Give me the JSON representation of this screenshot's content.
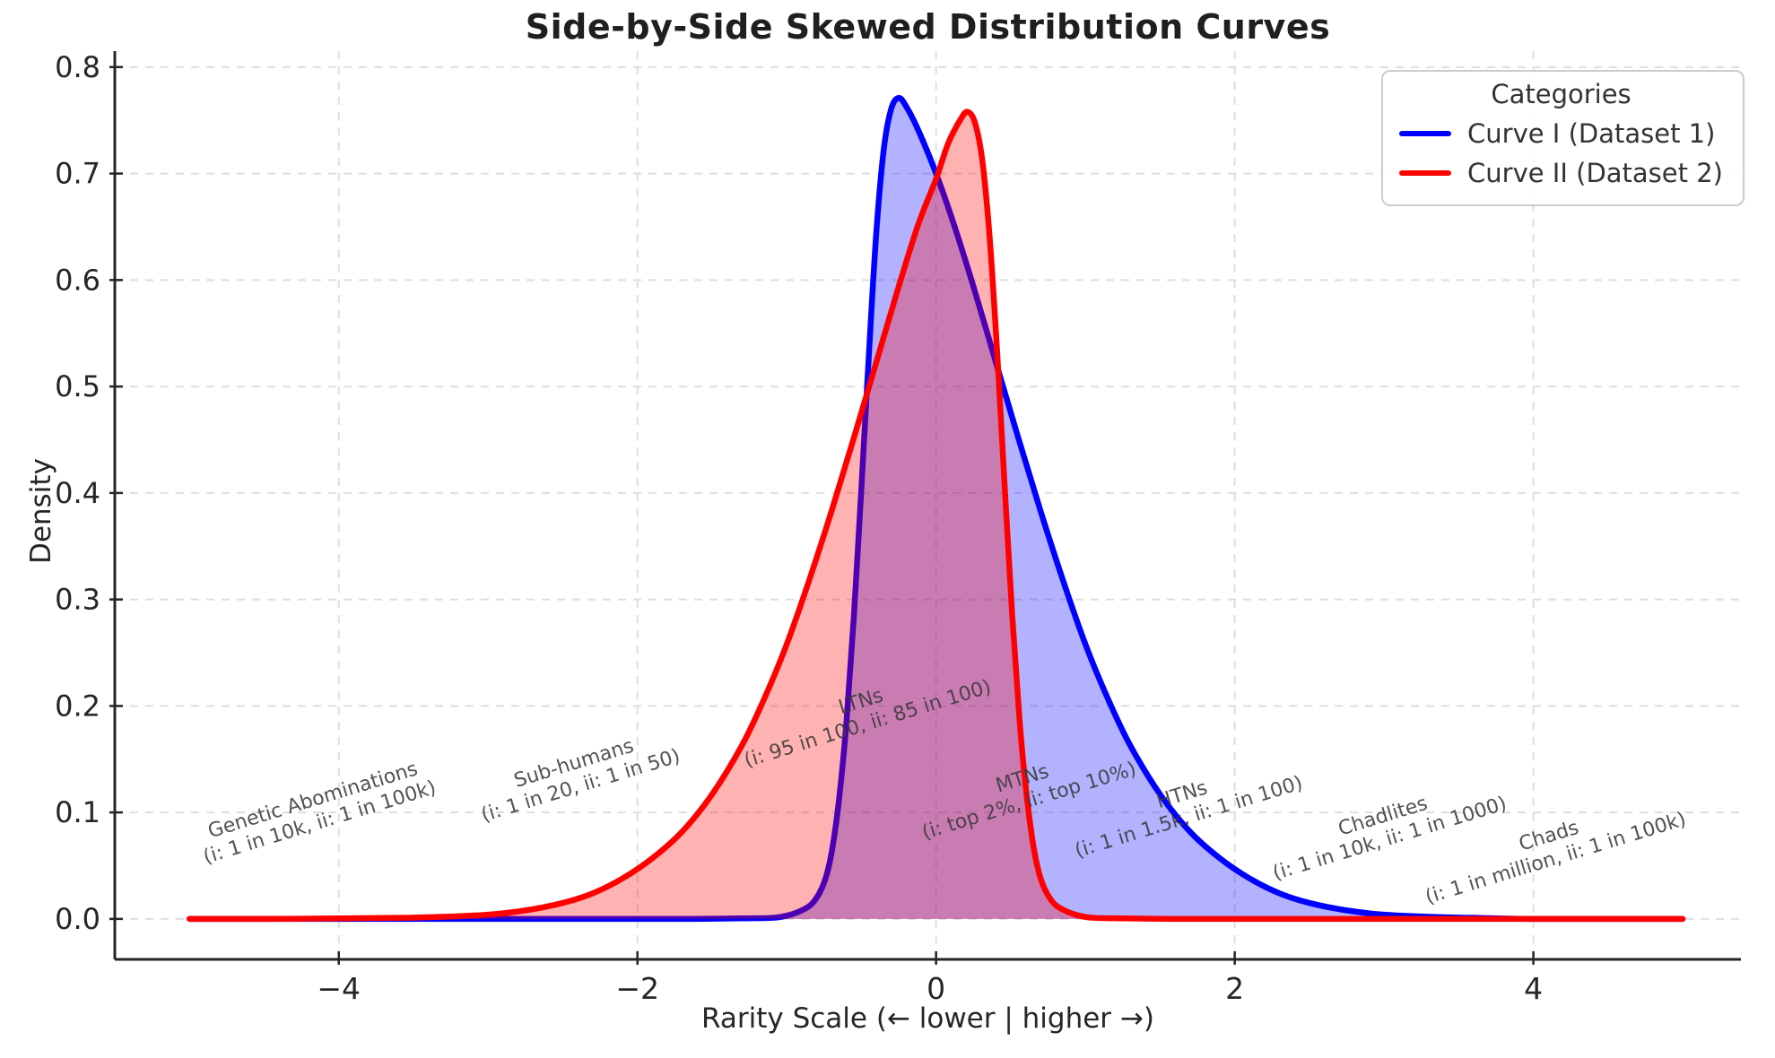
{
  "chart_data": {
    "type": "line",
    "title": "Side-by-Side Skewed Distribution Curves",
    "xlabel": "Rarity Scale (← lower | higher →)",
    "ylabel": "Density",
    "xlim": [
      -5.5,
      5.39
    ],
    "ylim": [
      -0.038,
      0.815
    ],
    "x_ticks": [
      -4,
      -2,
      0,
      2,
      4
    ],
    "y_ticks": [
      0.0,
      0.1,
      0.2,
      0.3,
      0.4,
      0.5,
      0.6,
      0.7,
      0.8
    ],
    "grid": true,
    "legend_position": "upper right",
    "legend": {
      "title": "Categories",
      "entries": [
        {
          "label": "Curve I (Dataset 1)",
          "color": "#0000ff"
        },
        {
          "label": "Curve II (Dataset 2)",
          "color": "#ff0000"
        }
      ]
    },
    "series": [
      {
        "name": "Curve I (Dataset 1)",
        "color": "#0000ff",
        "fill_opacity": 0.3,
        "points": [
          [
            -5.0,
            0
          ],
          [
            -4.0,
            0
          ],
          [
            -3.0,
            0
          ],
          [
            -2.5,
            0
          ],
          [
            -2.0,
            0
          ],
          [
            -1.6,
            0
          ],
          [
            -1.3,
            0.0005
          ],
          [
            -1.1,
            0.001
          ],
          [
            -1.0,
            0.003
          ],
          [
            -0.9,
            0.008
          ],
          [
            -0.82,
            0.016
          ],
          [
            -0.75,
            0.034
          ],
          [
            -0.7,
            0.062
          ],
          [
            -0.65,
            0.112
          ],
          [
            -0.6,
            0.185
          ],
          [
            -0.55,
            0.285
          ],
          [
            -0.5,
            0.405
          ],
          [
            -0.45,
            0.53
          ],
          [
            -0.4,
            0.645
          ],
          [
            -0.35,
            0.723
          ],
          [
            -0.3,
            0.761
          ],
          [
            -0.25,
            0.771
          ],
          [
            -0.2,
            0.763
          ],
          [
            -0.12,
            0.741
          ],
          [
            0.0,
            0.7
          ],
          [
            0.12,
            0.652
          ],
          [
            0.25,
            0.594
          ],
          [
            0.4,
            0.523
          ],
          [
            0.55,
            0.452
          ],
          [
            0.7,
            0.383
          ],
          [
            0.85,
            0.318
          ],
          [
            1.0,
            0.258
          ],
          [
            1.15,
            0.207
          ],
          [
            1.3,
            0.163
          ],
          [
            1.5,
            0.117
          ],
          [
            1.7,
            0.082
          ],
          [
            1.9,
            0.057
          ],
          [
            2.1,
            0.038
          ],
          [
            2.3,
            0.024
          ],
          [
            2.5,
            0.015
          ],
          [
            2.75,
            0.008
          ],
          [
            3.0,
            0.004
          ],
          [
            3.3,
            0.002
          ],
          [
            3.6,
            0.001
          ],
          [
            4.0,
            0
          ],
          [
            4.5,
            0
          ],
          [
            5.0,
            0
          ]
        ]
      },
      {
        "name": "Curve II (Dataset 2)",
        "color": "#ff0000",
        "fill_opacity": 0.3,
        "points": [
          [
            -5.0,
            0
          ],
          [
            -4.5,
            0
          ],
          [
            -4.0,
            0.0005
          ],
          [
            -3.6,
            0.001
          ],
          [
            -3.3,
            0.002
          ],
          [
            -3.0,
            0.004
          ],
          [
            -2.75,
            0.008
          ],
          [
            -2.5,
            0.015
          ],
          [
            -2.3,
            0.024
          ],
          [
            -2.1,
            0.038
          ],
          [
            -1.9,
            0.057
          ],
          [
            -1.7,
            0.082
          ],
          [
            -1.5,
            0.117
          ],
          [
            -1.3,
            0.163
          ],
          [
            -1.15,
            0.207
          ],
          [
            -1.0,
            0.258
          ],
          [
            -0.85,
            0.318
          ],
          [
            -0.7,
            0.383
          ],
          [
            -0.55,
            0.452
          ],
          [
            -0.4,
            0.523
          ],
          [
            -0.25,
            0.594
          ],
          [
            -0.12,
            0.652
          ],
          [
            0.0,
            0.695
          ],
          [
            0.08,
            0.728
          ],
          [
            0.16,
            0.75
          ],
          [
            0.21,
            0.758
          ],
          [
            0.26,
            0.748
          ],
          [
            0.31,
            0.712
          ],
          [
            0.36,
            0.638
          ],
          [
            0.41,
            0.53
          ],
          [
            0.46,
            0.405
          ],
          [
            0.51,
            0.285
          ],
          [
            0.56,
            0.185
          ],
          [
            0.61,
            0.112
          ],
          [
            0.66,
            0.062
          ],
          [
            0.71,
            0.034
          ],
          [
            0.78,
            0.016
          ],
          [
            0.86,
            0.008
          ],
          [
            0.96,
            0.003
          ],
          [
            1.06,
            0.001
          ],
          [
            1.26,
            0.0005
          ],
          [
            1.56,
            0
          ],
          [
            2.0,
            0
          ],
          [
            3.0,
            0
          ],
          [
            4.0,
            0
          ],
          [
            5.0,
            0
          ]
        ]
      }
    ],
    "annotations": [
      {
        "x": -4.15,
        "y": 0.1,
        "rotation": -17,
        "line1": "Genetic Abominations",
        "line2": "(i: 1 in 10k, ii: 1 in 100k)"
      },
      {
        "x": -2.4,
        "y": 0.135,
        "rotation": -17,
        "line1": "Sub-humans",
        "line2": "(i: 1 in 20, ii: 1 in 50)"
      },
      {
        "x": -0.48,
        "y": 0.193,
        "rotation": -17,
        "line1": "LTNs",
        "line2": "(i: 95 in 100, ii: 85 in 100)"
      },
      {
        "x": 0.6,
        "y": 0.12,
        "rotation": -17,
        "line1": "MTNs",
        "line2": "(i: top 2%, ii: top 10%)"
      },
      {
        "x": 1.67,
        "y": 0.105,
        "rotation": -17,
        "line1": "HTNs",
        "line2": "(i: 1 in 1.5k, ii: 1 in 100)"
      },
      {
        "x": 3.02,
        "y": 0.085,
        "rotation": -17,
        "line1": "Chadlites",
        "line2": "(i: 1 in 10k, ii: 1 in 1000)"
      },
      {
        "x": 4.13,
        "y": 0.066,
        "rotation": -17,
        "line1": "Chads",
        "line2": "(i: 1 in million, ii: 1 in 100k)"
      }
    ],
    "style": {
      "grid_color": "#dedede",
      "spine_color": "#262626",
      "annotation_color": "rgba(58,58,58,0.88)"
    }
  }
}
